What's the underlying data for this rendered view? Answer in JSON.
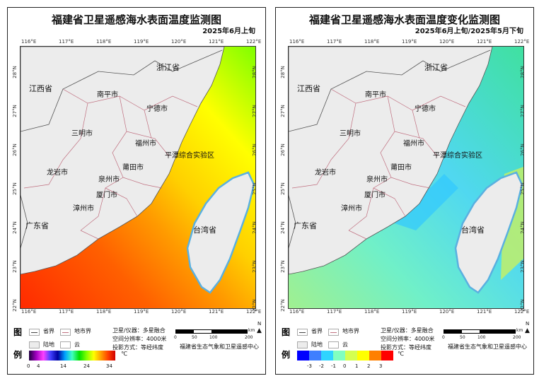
{
  "panels": [
    {
      "title": "福建省卫星遥感海水表面温度监测图",
      "subtitle": "2025年6月上旬",
      "legend_ticks": [
        "0",
        "4",
        "14",
        "24",
        "34"
      ],
      "unit": "℃"
    },
    {
      "title": "福建省卫星遥感海水表面温度变化监测图",
      "subtitle": "2025年6月上旬/2025年5月下旬",
      "legend_ticks": [
        "-3",
        "-2",
        "-1",
        "0",
        "1",
        "2",
        "3"
      ],
      "unit": "℃",
      "legend_colors": [
        "#0000ff",
        "#3f7fff",
        "#2fd4ff",
        "#80ffc0",
        "#d4ff50",
        "#ffff00",
        "#ff8000",
        "#ff0000"
      ]
    }
  ],
  "lon_ticks": [
    "116°E",
    "117°E",
    "118°E",
    "119°E",
    "120°E",
    "121°E",
    "122°E"
  ],
  "lat_ticks": [
    "28°N",
    "27°N",
    "26°N",
    "25°N",
    "24°N",
    "23°N",
    "22°N"
  ],
  "places": {
    "zhejiang": "浙江省",
    "jiangxi": "江西省",
    "nanping": "南平市",
    "ningde": "宁德市",
    "sanming": "三明市",
    "fuzhou": "福州市",
    "pingtan": "平潭综合实验区",
    "putian": "莆田市",
    "longyan": "龙岩市",
    "quanzhou": "泉州市",
    "xiamen": "厦门市",
    "zhangzhou": "漳州市",
    "guangdong": "广东省",
    "taiwan": "台湾省"
  },
  "legend": {
    "tu": "图",
    "li": "例",
    "province": "省界",
    "city": "地市界",
    "land": "陆地",
    "cloud": "云",
    "sat": "卫星/仪器：多星融合",
    "res": "空间分辨率：4000米",
    "proj": "投影方式：等经纬度",
    "scale": [
      "0",
      "50",
      "100",
      "200"
    ],
    "km": "km",
    "north": "N",
    "org": "福建省生态气象和卫星遥感中心"
  }
}
